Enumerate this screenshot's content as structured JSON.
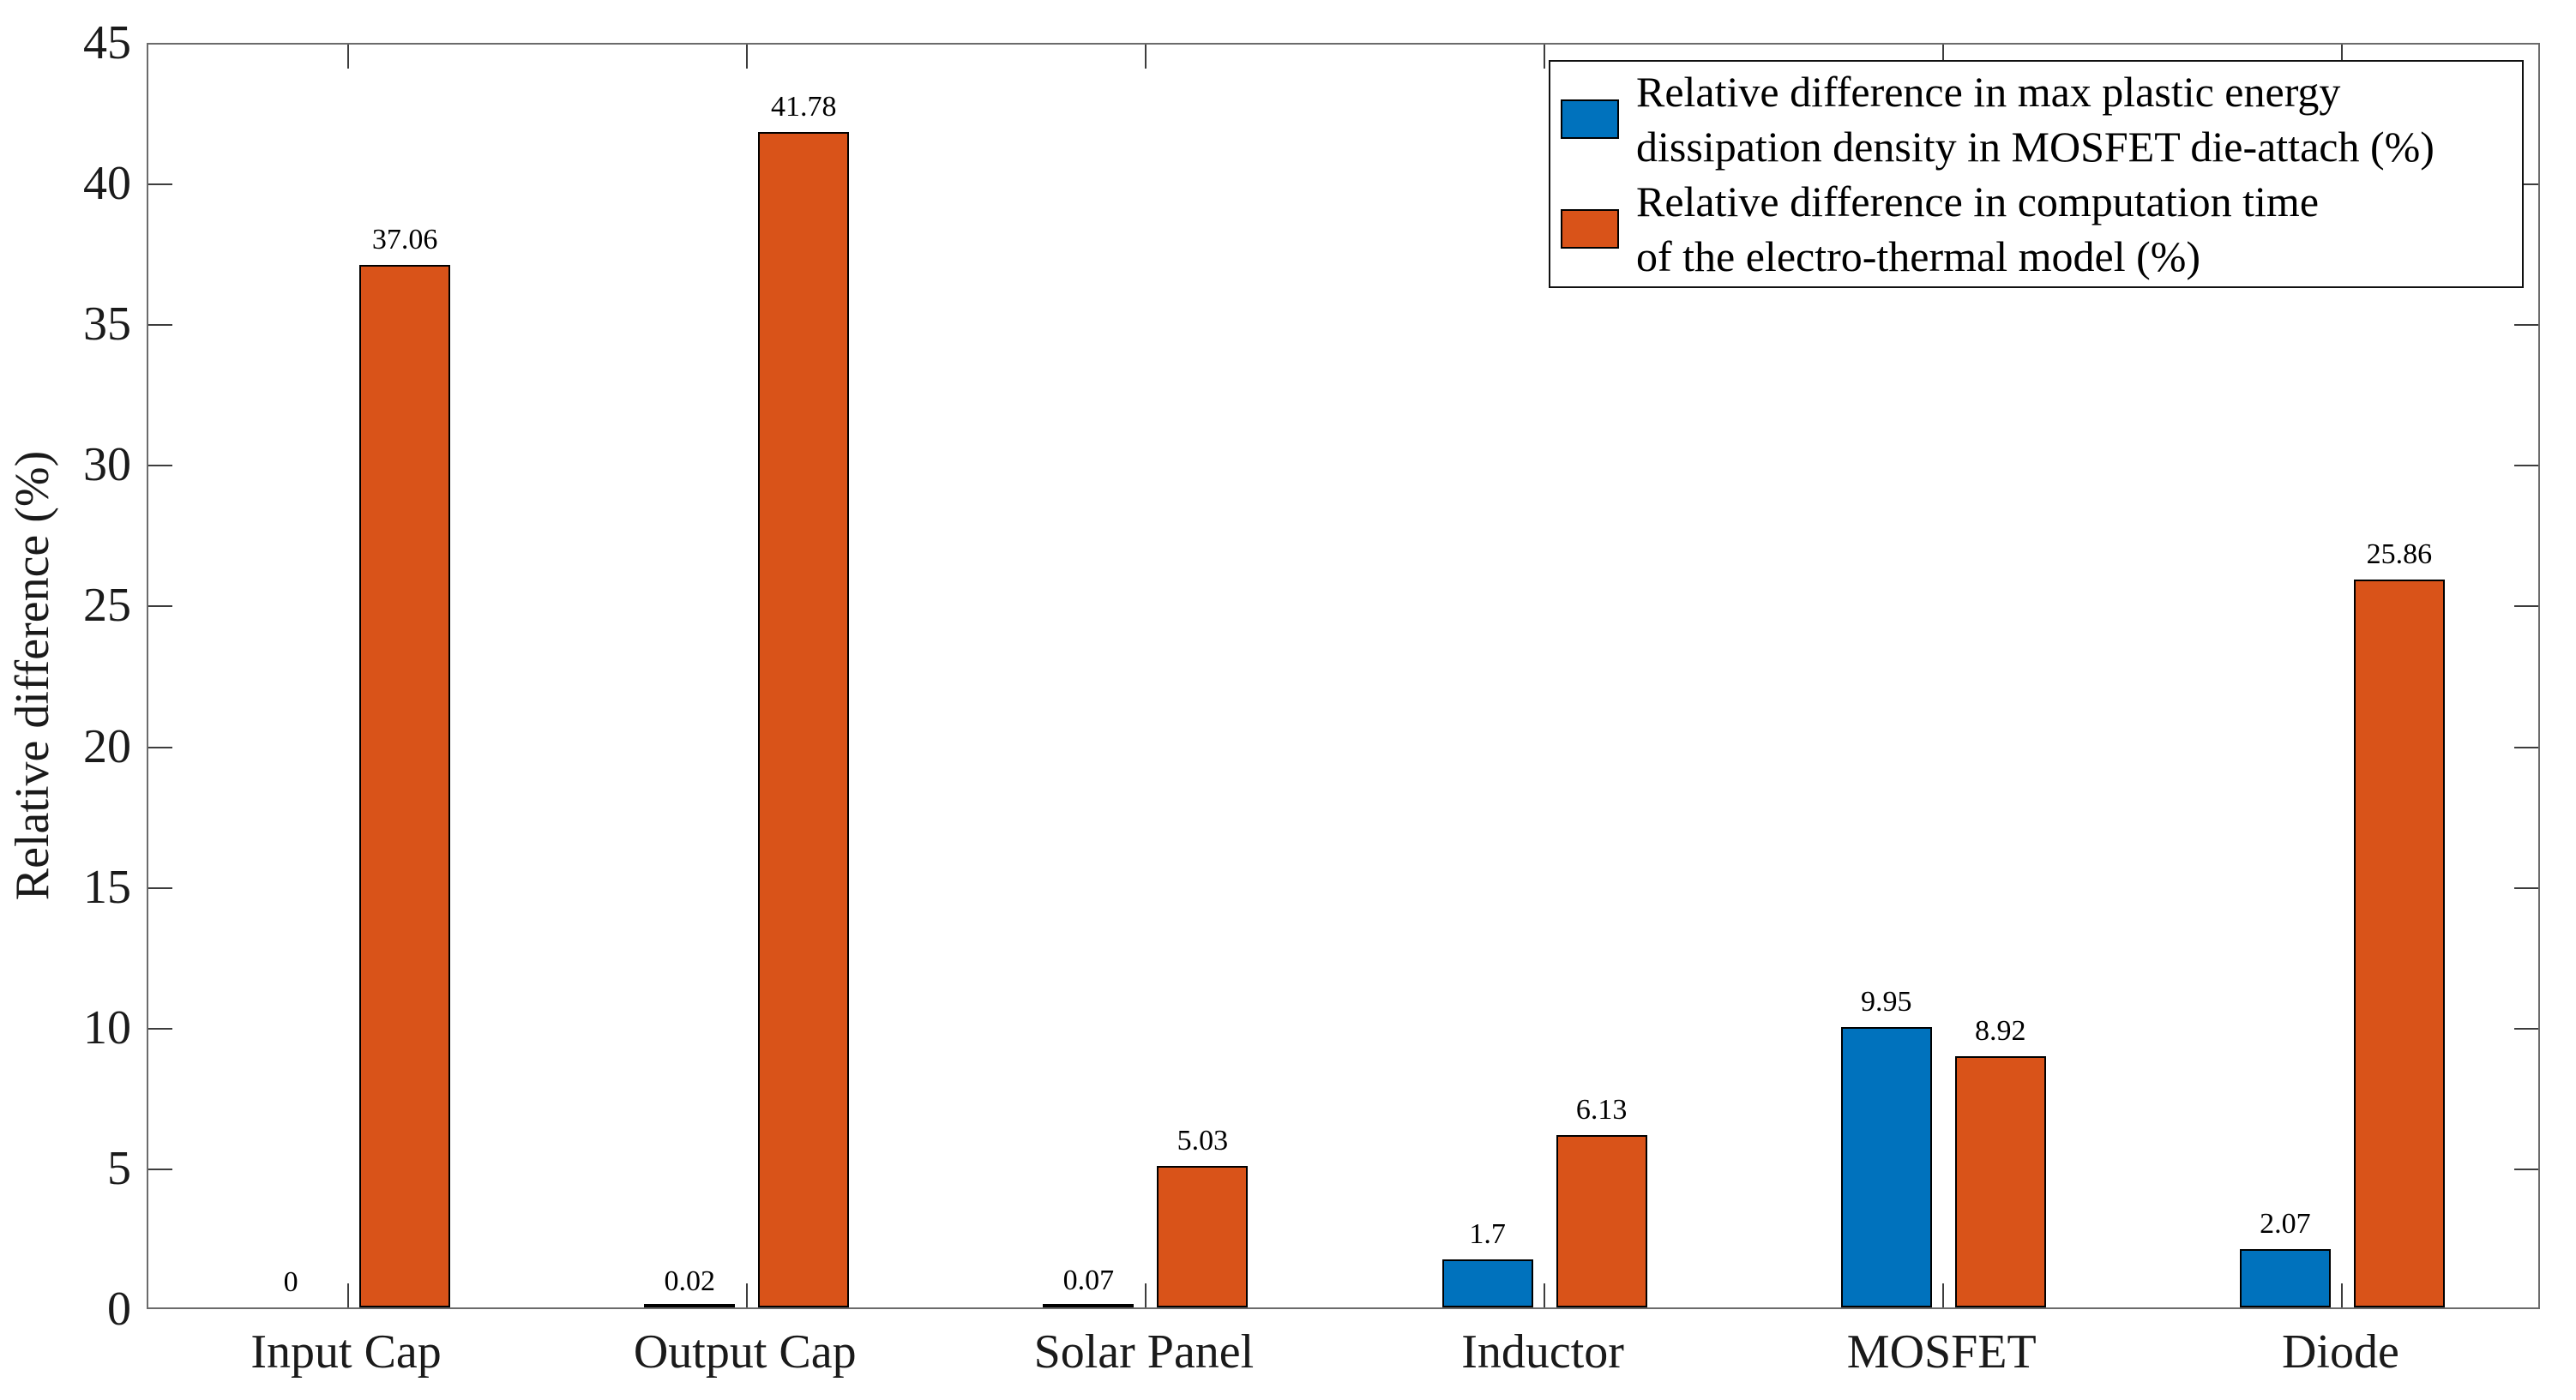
{
  "chart_data": {
    "type": "bar",
    "title": "",
    "categories": [
      "Input Cap",
      "Output Cap",
      "Solar Panel",
      "Inductor",
      "MOSFET",
      "Diode"
    ],
    "series": [
      {
        "name": "Relative difference in max plastic energy dissipation density in MOSFET die-attach (%)",
        "color": "#0072BD",
        "values": [
          0,
          0.02,
          0.07,
          1.7,
          9.95,
          2.07
        ]
      },
      {
        "name": "Relative difference in computation time of the electro-thermal model (%)",
        "color": "#D95319",
        "values": [
          37.06,
          41.78,
          5.03,
          6.13,
          8.92,
          25.86
        ]
      }
    ],
    "bar_value_labels": [
      [
        "0",
        "0.02",
        "0.07",
        "1.7",
        "9.95",
        "2.07"
      ],
      [
        "37.06",
        "41.78",
        "5.03",
        "6.13",
        "8.92",
        "25.86"
      ]
    ],
    "xlabel": "",
    "ylabel": "Relative difference (%)",
    "ylim": [
      0,
      45
    ],
    "yticks": [
      0,
      5,
      10,
      15,
      20,
      25,
      30,
      35,
      40,
      45
    ],
    "grid": false,
    "legend_position": "top-right"
  },
  "legend": {
    "entries": [
      {
        "line1": "Relative difference in max plastic energy",
        "line2": "dissipation density in MOSFET die-attach (%)",
        "color": "#0072BD"
      },
      {
        "line1": "Relative difference in computation time",
        "line2": "of the electro-thermal model (%)",
        "color": "#D95319"
      }
    ]
  }
}
